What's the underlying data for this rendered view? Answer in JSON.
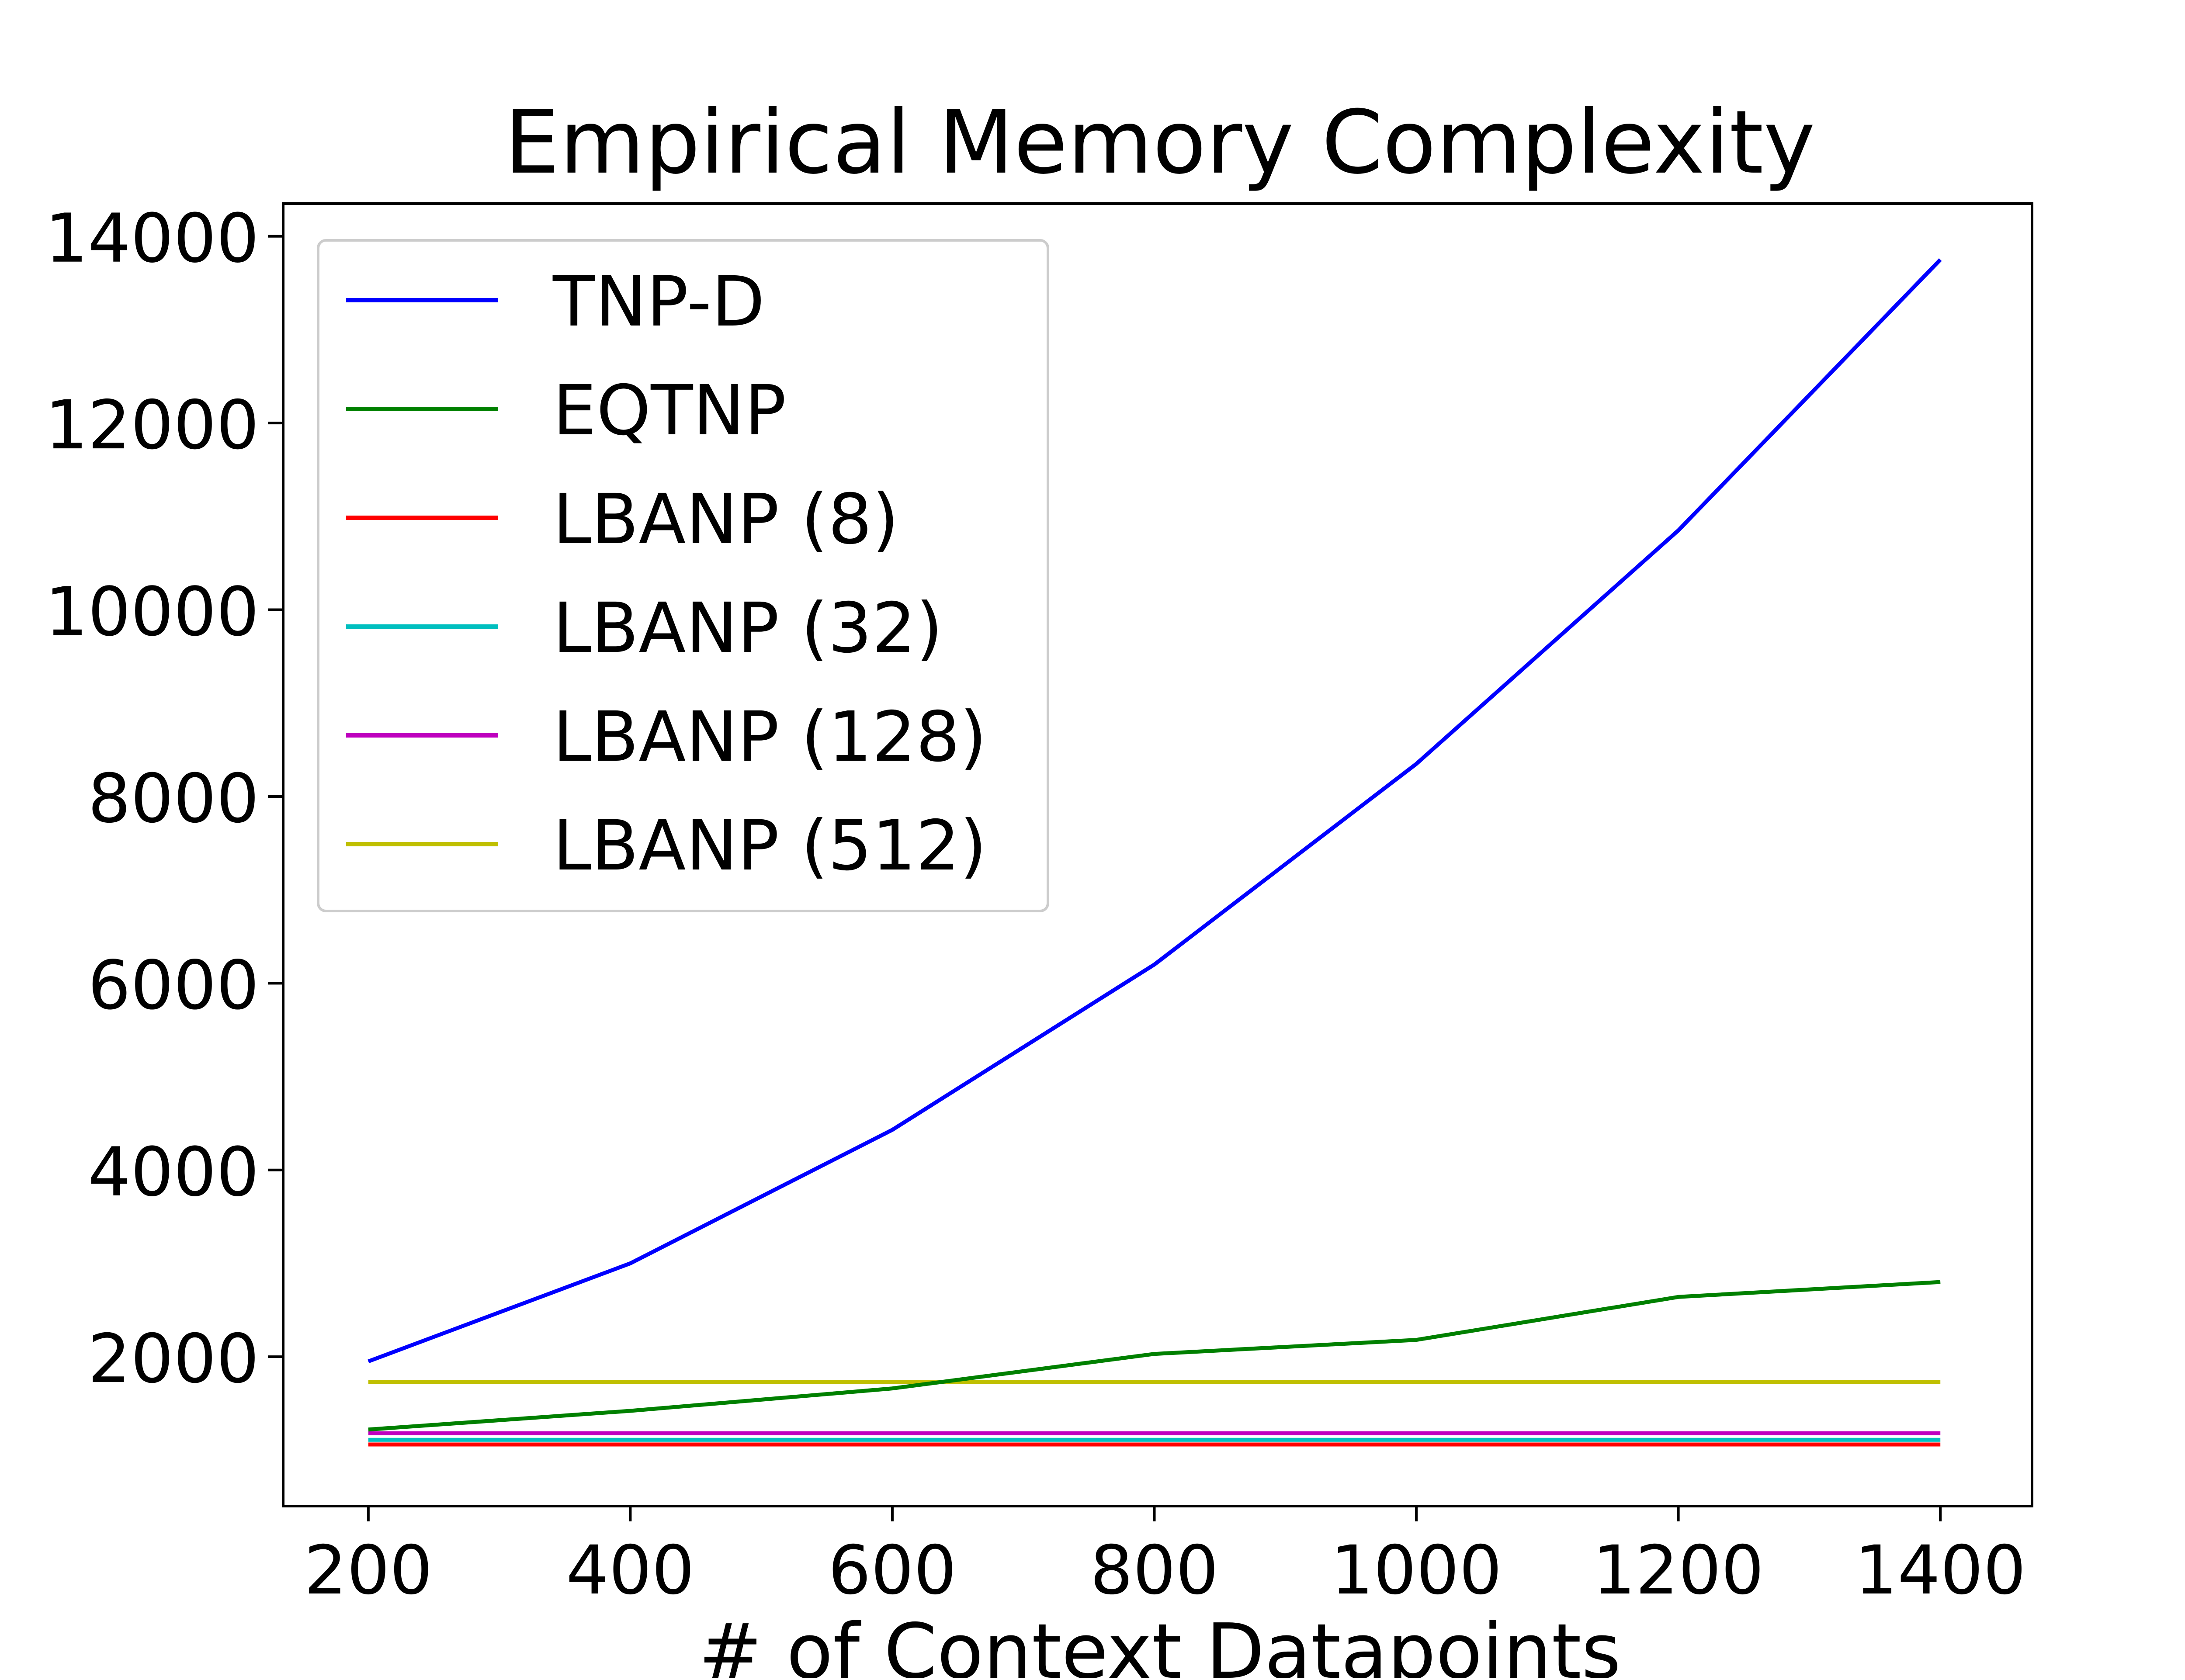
{
  "chart_data": {
    "type": "line",
    "title": "Empirical Memory Complexity",
    "xlabel": "# of Context Datapoints",
    "ylabel": "",
    "x": [
      200,
      400,
      600,
      800,
      1000,
      1200,
      1400
    ],
    "xticks": [
      "200",
      "400",
      "600",
      "800",
      "1000",
      "1200",
      "1400"
    ],
    "yticks": [
      "2000",
      "4000",
      "6000",
      "8000",
      "10000",
      "12000",
      "14000"
    ],
    "xlim": [
      135,
      1470
    ],
    "ylim": [
      400,
      14350
    ],
    "grid": false,
    "legend_position": "top-left",
    "series": [
      {
        "name": "TNP-D",
        "color": "#0000ff",
        "values": [
          1950,
          3000,
          4430,
          6200,
          8350,
          10850,
          13750
        ]
      },
      {
        "name": "EQTNP",
        "color": "#008000",
        "values": [
          1220,
          1420,
          1660,
          2030,
          2180,
          2640,
          2800
        ]
      },
      {
        "name": "LBANP (8)",
        "color": "#ff0000",
        "values": [
          1060,
          1060,
          1060,
          1060,
          1060,
          1060,
          1060
        ]
      },
      {
        "name": "LBANP (32)",
        "color": "#00bfbf",
        "values": [
          1110,
          1110,
          1110,
          1110,
          1110,
          1110,
          1110
        ]
      },
      {
        "name": "LBANP (128)",
        "color": "#bf00bf",
        "values": [
          1180,
          1180,
          1180,
          1180,
          1180,
          1180,
          1180
        ]
      },
      {
        "name": "LBANP (512)",
        "color": "#bfbf00",
        "values": [
          1730,
          1730,
          1730,
          1730,
          1730,
          1730,
          1730
        ]
      }
    ]
  }
}
